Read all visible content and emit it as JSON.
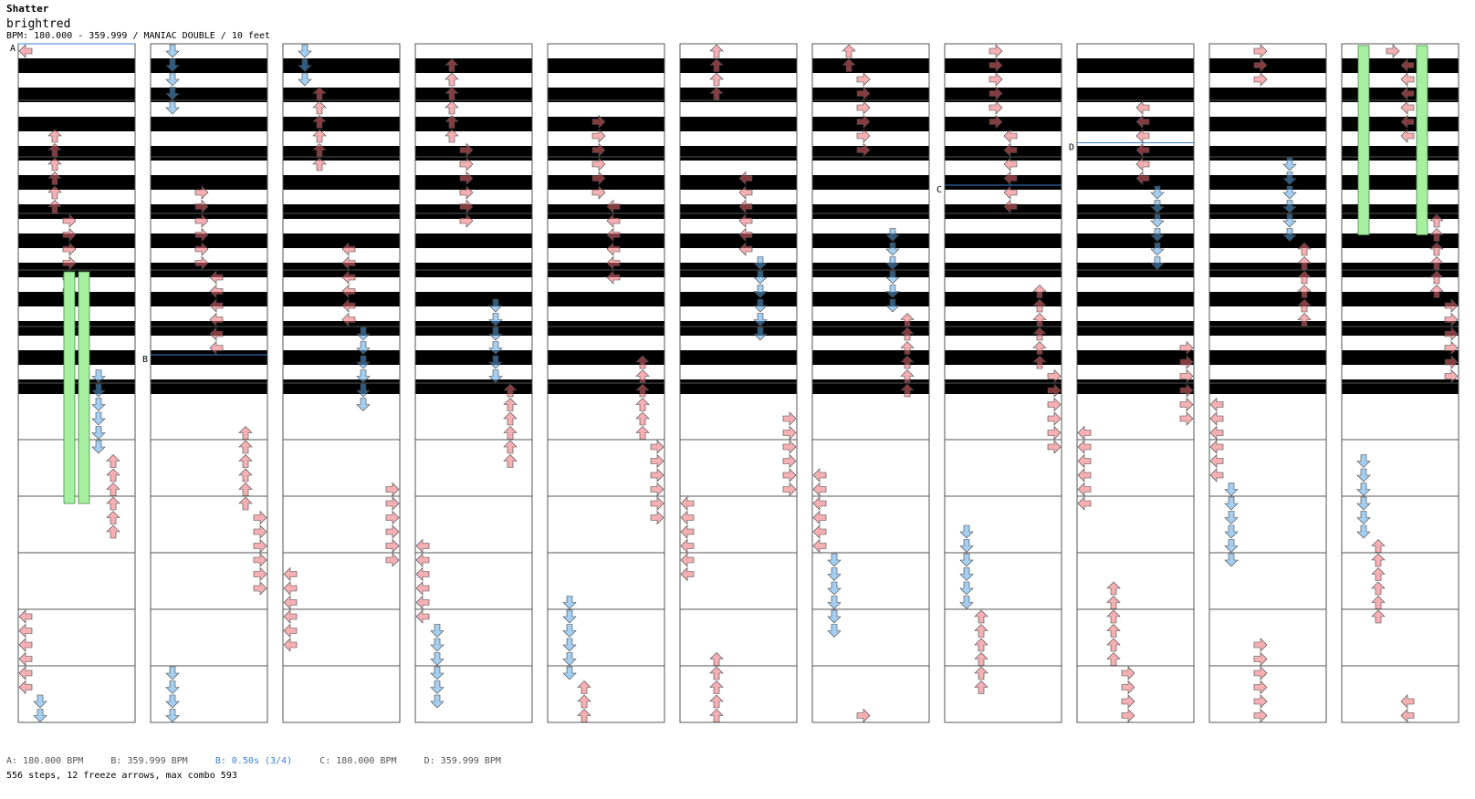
{
  "song": {
    "title": "Shatter",
    "artist": "brightred",
    "info": "BPM: 180.000 - 359.999 / MANIAC DOUBLE / 10 feet"
  },
  "markers": [
    {
      "label": "A",
      "column": 0,
      "row": 0
    },
    {
      "label": "B",
      "column": 1,
      "row": 22
    },
    {
      "label": "C",
      "column": 7,
      "row": 10
    },
    {
      "label": "D",
      "column": 8,
      "row": 7
    }
  ],
  "legend": {
    "a": "A: 180.000 BPM",
    "b": "B: 359.999 BPM",
    "stop": "B: 0.50s (3/4)",
    "c": "C: 180.000 BPM",
    "d": "D: 359.999 BPM"
  },
  "summary": "556 steps, 12 freeze arrows, max combo 593",
  "colors": {
    "red_arrow": "#ef6f76",
    "blue_arrow": "#5aa6e8",
    "freeze": "#a7f0a2",
    "stripe": "#c8c8c8",
    "measure_line": "#555555",
    "bpm_line": "#3d7fd1"
  },
  "chart_data": {
    "type": "step-chart",
    "columns": 11,
    "lanes": 8,
    "arrow_kinds": [
      "left",
      "down",
      "up",
      "right",
      "left",
      "down",
      "up",
      "right"
    ],
    "freezes": [
      {
        "column": 0,
        "lane": 3,
        "start_row": 16,
        "end_row": 32
      },
      {
        "column": 0,
        "lane": 4,
        "start_row": 16,
        "end_row": 32
      },
      {
        "column": 10,
        "lane": 1,
        "start_row": 0,
        "end_row": 13
      },
      {
        "column": 10,
        "lane": 5,
        "start_row": 0,
        "end_row": 13
      }
    ]
  }
}
